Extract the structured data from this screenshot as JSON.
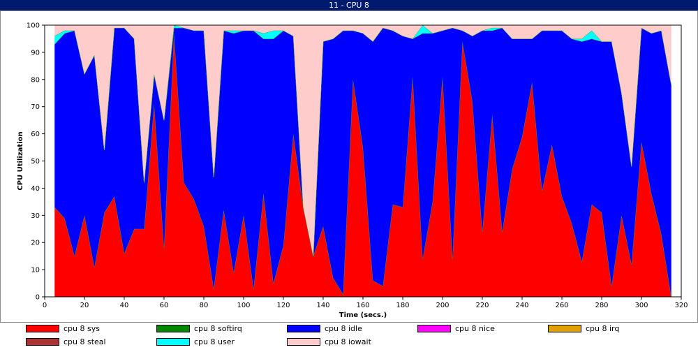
{
  "window": {
    "title": "11 - CPU 8"
  },
  "chart_data": {
    "type": "area",
    "stacked": true,
    "xlabel": "Time (secs.)",
    "ylabel": "CPU Utilization",
    "xlim": [
      0,
      320
    ],
    "ylim": [
      0,
      100
    ],
    "xticks": [
      0,
      20,
      40,
      60,
      80,
      100,
      120,
      140,
      160,
      180,
      200,
      220,
      240,
      260,
      280,
      300,
      320
    ],
    "yticks": [
      0,
      10,
      20,
      30,
      40,
      50,
      60,
      70,
      80,
      90,
      100
    ],
    "grid": false,
    "legend_position": "bottom",
    "x": [
      5,
      10,
      15,
      20,
      25,
      30,
      35,
      40,
      45,
      50,
      55,
      60,
      65,
      70,
      75,
      80,
      85,
      90,
      95,
      100,
      105,
      110,
      115,
      120,
      125,
      130,
      135,
      140,
      145,
      150,
      155,
      160,
      165,
      170,
      175,
      180,
      185,
      190,
      195,
      200,
      205,
      210,
      215,
      220,
      225,
      230,
      235,
      240,
      245,
      250,
      255,
      260,
      265,
      270,
      275,
      280,
      285,
      290,
      295,
      300,
      305,
      310,
      315
    ],
    "series": [
      {
        "name": "cpu 8 sys",
        "color": "#ff0000",
        "values": [
          33,
          29,
          15,
          30,
          11,
          31,
          37,
          16,
          25,
          25,
          71,
          18,
          97,
          42,
          36,
          26,
          3,
          32,
          9,
          30,
          3,
          38,
          5,
          19,
          60,
          33,
          15,
          26,
          7,
          1,
          80,
          55,
          6,
          4,
          34,
          33,
          81,
          14,
          35,
          81,
          14,
          94,
          72,
          24,
          67,
          24,
          47,
          59,
          79,
          39,
          56,
          37,
          27,
          13,
          34,
          31,
          4,
          30,
          12,
          57,
          38,
          23,
          0
        ]
      },
      {
        "name": "cpu 8 softirq",
        "color": "#008800",
        "values": [
          0,
          0,
          0,
          0,
          0,
          0,
          0,
          0,
          0,
          0,
          0,
          0,
          0,
          0,
          0,
          0,
          0,
          0,
          0,
          0,
          0,
          0,
          0,
          0,
          0,
          0,
          0,
          0,
          0,
          0,
          0,
          0,
          0,
          0,
          0,
          0,
          0,
          0,
          0,
          0,
          0,
          0,
          0,
          0,
          0,
          0,
          0,
          0,
          0,
          0,
          0,
          0,
          0,
          0,
          0,
          0,
          0,
          0,
          0,
          0,
          0,
          0,
          0
        ]
      },
      {
        "name": "cpu 8 idle",
        "color": "#0000ff",
        "values": [
          60,
          68,
          83,
          52,
          78,
          23,
          62,
          83,
          70,
          17,
          11,
          47,
          2,
          57,
          62,
          72,
          41,
          66,
          88,
          68,
          95,
          57,
          90,
          79,
          36,
          0,
          0,
          68,
          88,
          97,
          18,
          42,
          88,
          95,
          64,
          63,
          14,
          83,
          62,
          17,
          85,
          4,
          24,
          74,
          31,
          75,
          48,
          36,
          16,
          59,
          42,
          61,
          68,
          81,
          61,
          63,
          90,
          45,
          36,
          42,
          59,
          75,
          78
        ]
      },
      {
        "name": "cpu 8 nice",
        "color": "#ff00ff",
        "values": [
          0,
          0,
          0,
          0,
          0,
          0,
          0,
          0,
          0,
          0,
          0,
          0,
          0,
          0,
          0,
          0,
          0,
          0,
          0,
          0,
          0,
          0,
          0,
          0,
          0,
          0,
          0,
          0,
          0,
          0,
          0,
          0,
          0,
          0,
          0,
          0,
          0,
          0,
          0,
          0,
          0,
          0,
          0,
          0,
          0,
          0,
          0,
          0,
          0,
          0,
          0,
          0,
          0,
          0,
          0,
          0,
          0,
          0,
          0,
          0,
          0,
          0,
          0
        ]
      },
      {
        "name": "cpu 8 irq",
        "color": "#e0a000",
        "values": [
          0,
          0,
          0,
          0,
          0,
          0,
          0,
          0,
          0,
          0,
          0,
          0,
          0,
          0,
          0,
          0,
          0,
          0,
          0,
          0,
          0,
          0,
          0,
          0,
          0,
          0,
          0,
          0,
          0,
          0,
          0,
          0,
          0,
          0,
          0,
          0,
          0,
          0,
          0,
          0,
          0,
          0,
          0,
          0,
          0,
          0,
          0,
          0,
          0,
          0,
          0,
          0,
          0,
          0,
          0,
          0,
          0,
          0,
          0,
          0,
          0,
          0,
          0
        ]
      },
      {
        "name": "cpu 8 steal",
        "color": "#aa3333",
        "values": [
          0,
          0,
          0,
          0,
          0,
          0,
          0,
          0,
          0,
          0,
          0,
          0,
          0,
          0,
          0,
          0,
          0,
          0,
          0,
          0,
          0,
          0,
          0,
          0,
          0,
          0,
          0,
          0,
          0,
          0,
          0,
          0,
          0,
          0,
          0,
          0,
          0,
          0,
          0,
          0,
          0,
          0,
          0,
          0,
          0,
          0,
          0,
          0,
          0,
          0,
          0,
          0,
          0,
          0,
          0,
          0,
          0,
          0,
          0,
          0,
          0,
          0,
          0
        ]
      },
      {
        "name": "cpu 8 user",
        "color": "#00ffff",
        "values": [
          3,
          1,
          0,
          0,
          0,
          0,
          0,
          0,
          0,
          0,
          0,
          0,
          1,
          0,
          0,
          0,
          0,
          0,
          1,
          0,
          0,
          2,
          3,
          0,
          0,
          0,
          0,
          0,
          0,
          0,
          0,
          0,
          0,
          0,
          0,
          0,
          0,
          3,
          0,
          0,
          0,
          0,
          0,
          0,
          1,
          0,
          0,
          0,
          0,
          0,
          0,
          0,
          0,
          1,
          3,
          0,
          0,
          0,
          0,
          0,
          0,
          0,
          0
        ]
      },
      {
        "name": "cpu 8 iowait",
        "color": "#ffcccc",
        "values": [
          4,
          2,
          2,
          18,
          11,
          46,
          1,
          1,
          5,
          58,
          18,
          35,
          0,
          1,
          2,
          2,
          56,
          2,
          2,
          2,
          2,
          3,
          2,
          2,
          4,
          67,
          85,
          6,
          5,
          2,
          2,
          3,
          6,
          1,
          2,
          4,
          5,
          0,
          3,
          2,
          1,
          2,
          4,
          2,
          1,
          1,
          5,
          5,
          5,
          2,
          2,
          2,
          5,
          5,
          2,
          6,
          6,
          25,
          52,
          1,
          3,
          2,
          22
        ]
      }
    ]
  }
}
